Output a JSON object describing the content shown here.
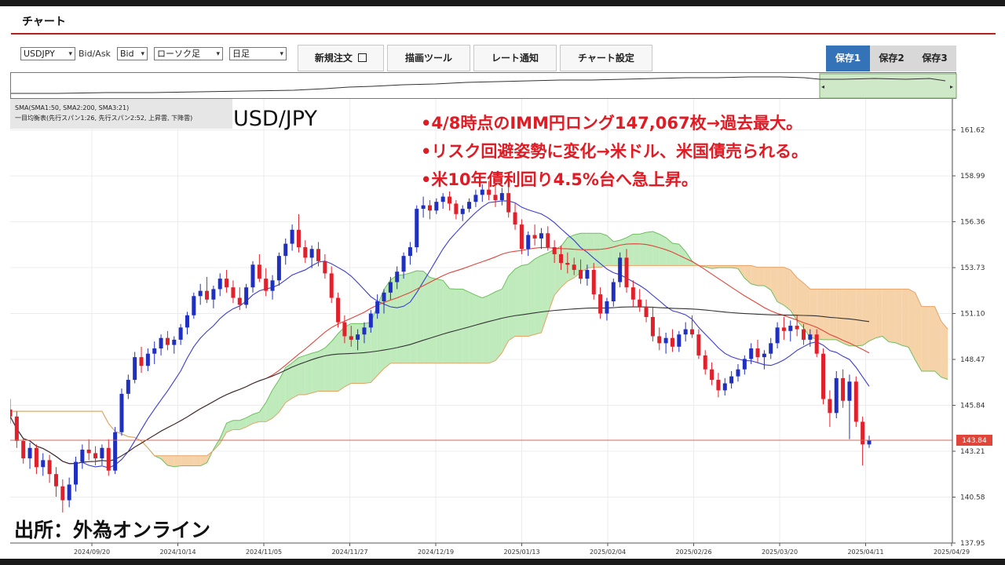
{
  "window": {
    "title": "チャート"
  },
  "toolbar": {
    "symbol": "USDJPY",
    "bidask_label": "Bid/Ask",
    "side": "Bid",
    "chart_style": "ローソク足",
    "timeframe": "日足",
    "buttons": [
      "新規注文",
      "描画ツール",
      "レート通知",
      "チャート設定"
    ],
    "save_tabs": [
      "保存1",
      "保存2",
      "保存3"
    ],
    "active_save_tab": 0
  },
  "indicator_info": {
    "sma": "SMA(SMA1:50, SMA2:200, SMA3:21)",
    "ichimoku": "一目均衡表(先行スパン1:26, 先行スパン2:52, 上昇雲, 下降雲)"
  },
  "overlay": {
    "pair": "USD/JPY",
    "notes": [
      "•4/8時点のIMM円ロング147,067枚→過去最大。",
      "•リスク回避姿勢に変化→米ドル、米国債売られる。",
      "•米10年債利回り4.5%台へ急上昇。"
    ],
    "source": "出所：外為オンライン"
  },
  "colors": {
    "up": "#1f2fbf",
    "down": "#e0202a",
    "overlay_text": "#e01b24",
    "cloud_up": "#bfeabb",
    "cloud_down": "#f6d2a8",
    "sma_short": "#3b3bd1",
    "sma_mid": "#e0453a",
    "sma_long": "#333333",
    "price_line": "#d06a5c",
    "active_tab": "#3473b8"
  },
  "chart_data": {
    "type": "candlestick",
    "title": "USD/JPY",
    "x_ticks": [
      "2024/09/20",
      "2024/10/14",
      "2024/11/05",
      "2024/11/27",
      "2024/12/19",
      "2025/01/13",
      "2025/02/04",
      "2025/02/26",
      "2025/03/20",
      "2025/04/11",
      "2025/04/29"
    ],
    "y_ticks": [
      "161.62",
      "158.99",
      "156.36",
      "153.73",
      "151.10",
      "148.47",
      "145.84",
      "143.21",
      "140.58",
      "137.95"
    ],
    "ylim": [
      137.95,
      163.4
    ],
    "current_price_label": "143.84",
    "current_price": 143.84,
    "candles": [
      [
        145.6,
        146.2,
        144.8,
        145.2
      ],
      [
        145.2,
        145.5,
        143.4,
        143.8
      ],
      [
        143.8,
        144.0,
        142.5,
        142.8
      ],
      [
        142.8,
        143.7,
        142.2,
        143.4
      ],
      [
        143.4,
        143.6,
        141.9,
        142.3
      ],
      [
        142.3,
        143.1,
        141.8,
        142.7
      ],
      [
        142.7,
        143.0,
        141.4,
        141.9
      ],
      [
        141.9,
        142.3,
        140.6,
        141.2
      ],
      [
        141.2,
        141.6,
        139.7,
        140.4
      ],
      [
        140.4,
        141.7,
        140.0,
        141.3
      ],
      [
        141.3,
        142.9,
        140.9,
        142.6
      ],
      [
        142.6,
        143.6,
        142.2,
        143.3
      ],
      [
        143.3,
        143.9,
        142.7,
        143.1
      ],
      [
        143.1,
        143.5,
        142.4,
        142.8
      ],
      [
        142.8,
        143.6,
        142.4,
        143.4
      ],
      [
        143.4,
        143.9,
        141.8,
        142.1
      ],
      [
        142.1,
        144.6,
        141.9,
        144.3
      ],
      [
        144.3,
        146.8,
        144.1,
        146.5
      ],
      [
        146.5,
        147.6,
        146.2,
        147.3
      ],
      [
        147.3,
        148.9,
        147.1,
        148.6
      ],
      [
        148.6,
        149.2,
        147.7,
        148.1
      ],
      [
        148.1,
        149.1,
        147.8,
        148.8
      ],
      [
        148.8,
        149.5,
        148.2,
        149.1
      ],
      [
        149.1,
        149.9,
        148.7,
        149.7
      ],
      [
        149.7,
        150.1,
        149.0,
        149.3
      ],
      [
        149.3,
        149.8,
        148.8,
        149.6
      ],
      [
        149.6,
        150.5,
        149.3,
        150.3
      ],
      [
        150.3,
        151.2,
        149.9,
        151.0
      ],
      [
        151.0,
        152.3,
        150.8,
        152.1
      ],
      [
        152.1,
        152.8,
        151.6,
        152.4
      ],
      [
        152.4,
        153.2,
        151.7,
        151.9
      ],
      [
        151.9,
        152.7,
        151.4,
        152.5
      ],
      [
        152.5,
        153.4,
        152.1,
        153.1
      ],
      [
        153.1,
        153.6,
        152.3,
        152.6
      ],
      [
        152.6,
        153.0,
        151.7,
        152.0
      ],
      [
        152.0,
        152.6,
        151.3,
        151.6
      ],
      [
        151.6,
        152.8,
        151.4,
        152.6
      ],
      [
        152.6,
        154.1,
        152.3,
        153.9
      ],
      [
        153.9,
        154.5,
        152.9,
        153.1
      ],
      [
        153.1,
        153.7,
        152.1,
        152.4
      ],
      [
        152.4,
        153.3,
        151.9,
        153.0
      ],
      [
        153.0,
        154.6,
        152.7,
        154.4
      ],
      [
        154.4,
        155.4,
        153.9,
        155.1
      ],
      [
        155.1,
        156.2,
        154.7,
        155.9
      ],
      [
        155.9,
        156.8,
        154.6,
        154.9
      ],
      [
        154.9,
        155.3,
        154.0,
        154.3
      ],
      [
        154.3,
        155.0,
        153.7,
        154.8
      ],
      [
        154.8,
        155.2,
        153.8,
        154.1
      ],
      [
        154.1,
        154.5,
        153.1,
        153.4
      ],
      [
        153.4,
        153.8,
        151.7,
        152.0
      ],
      [
        152.0,
        152.3,
        150.3,
        150.6
      ],
      [
        150.6,
        151.0,
        149.4,
        149.8
      ],
      [
        149.8,
        150.4,
        149.2,
        149.6
      ],
      [
        149.6,
        150.2,
        149.0,
        149.9
      ],
      [
        149.9,
        150.6,
        149.4,
        150.3
      ],
      [
        150.3,
        151.3,
        150.0,
        151.1
      ],
      [
        151.1,
        152.2,
        150.8,
        151.8
      ],
      [
        151.8,
        152.5,
        151.1,
        152.3
      ],
      [
        152.3,
        153.2,
        151.9,
        152.9
      ],
      [
        152.9,
        153.8,
        152.5,
        153.5
      ],
      [
        153.5,
        154.6,
        153.1,
        154.4
      ],
      [
        154.4,
        155.2,
        153.9,
        154.9
      ],
      [
        154.9,
        157.3,
        154.6,
        157.1
      ],
      [
        157.1,
        157.8,
        156.6,
        157.3
      ],
      [
        157.3,
        157.6,
        156.5,
        157.0
      ],
      [
        157.0,
        157.7,
        156.8,
        157.5
      ],
      [
        157.5,
        158.0,
        157.1,
        157.8
      ],
      [
        157.8,
        158.1,
        157.0,
        157.4
      ],
      [
        157.4,
        157.6,
        156.5,
        156.8
      ],
      [
        156.8,
        157.3,
        156.4,
        157.1
      ],
      [
        157.1,
        157.7,
        156.9,
        157.5
      ],
      [
        157.5,
        158.2,
        157.2,
        157.9
      ],
      [
        157.9,
        158.5,
        157.5,
        158.2
      ],
      [
        158.2,
        158.7,
        157.6,
        157.9
      ],
      [
        157.9,
        158.4,
        157.2,
        157.6
      ],
      [
        157.6,
        158.3,
        157.3,
        158.0
      ],
      [
        158.0,
        158.4,
        156.6,
        156.9
      ],
      [
        156.9,
        157.4,
        155.9,
        156.2
      ],
      [
        156.2,
        156.5,
        154.5,
        154.8
      ],
      [
        154.8,
        155.8,
        154.4,
        155.6
      ],
      [
        155.6,
        156.2,
        155.0,
        155.4
      ],
      [
        155.4,
        156.0,
        154.8,
        155.7
      ],
      [
        155.7,
        156.1,
        154.7,
        154.9
      ],
      [
        154.9,
        155.3,
        154.0,
        154.5
      ],
      [
        154.5,
        155.0,
        153.6,
        154.0
      ],
      [
        154.0,
        154.6,
        153.4,
        153.9
      ],
      [
        153.9,
        154.3,
        153.3,
        153.6
      ],
      [
        153.6,
        154.2,
        152.8,
        153.1
      ],
      [
        153.1,
        153.9,
        152.7,
        153.6
      ],
      [
        153.6,
        154.0,
        151.9,
        152.2
      ],
      [
        152.2,
        152.6,
        150.8,
        151.1
      ],
      [
        151.1,
        152.0,
        150.7,
        151.8
      ],
      [
        151.8,
        153.1,
        151.5,
        152.9
      ],
      [
        152.9,
        154.6,
        152.6,
        154.3
      ],
      [
        154.3,
        154.8,
        152.3,
        152.6
      ],
      [
        152.6,
        153.0,
        151.5,
        151.9
      ],
      [
        151.9,
        152.5,
        151.2,
        151.5
      ],
      [
        151.5,
        151.9,
        150.6,
        150.9
      ],
      [
        150.9,
        151.5,
        149.5,
        149.8
      ],
      [
        149.8,
        150.3,
        149.0,
        149.4
      ],
      [
        149.4,
        150.0,
        148.8,
        149.7
      ],
      [
        149.7,
        150.2,
        148.9,
        149.2
      ],
      [
        149.2,
        150.1,
        148.9,
        149.9
      ],
      [
        149.9,
        150.6,
        149.5,
        150.2
      ],
      [
        150.2,
        151.0,
        149.7,
        149.9
      ],
      [
        149.9,
        150.2,
        148.5,
        148.7
      ],
      [
        148.7,
        149.0,
        147.6,
        147.9
      ],
      [
        147.9,
        148.3,
        147.0,
        147.3
      ],
      [
        147.3,
        147.7,
        146.3,
        146.7
      ],
      [
        146.7,
        147.4,
        146.4,
        147.1
      ],
      [
        147.1,
        147.8,
        146.8,
        147.5
      ],
      [
        147.5,
        148.2,
        147.2,
        147.9
      ],
      [
        147.9,
        148.7,
        147.6,
        148.5
      ],
      [
        148.5,
        149.4,
        148.2,
        149.1
      ],
      [
        149.1,
        149.6,
        148.3,
        148.6
      ],
      [
        148.6,
        149.0,
        147.9,
        148.8
      ],
      [
        148.8,
        149.7,
        148.5,
        149.4
      ],
      [
        149.4,
        150.6,
        149.1,
        150.3
      ],
      [
        150.3,
        150.9,
        149.6,
        150.1
      ],
      [
        150.1,
        150.7,
        149.5,
        150.4
      ],
      [
        150.4,
        151.0,
        149.8,
        150.2
      ],
      [
        150.2,
        150.5,
        149.3,
        149.6
      ],
      [
        149.6,
        150.2,
        149.2,
        149.9
      ],
      [
        149.9,
        150.2,
        148.6,
        148.8
      ],
      [
        148.8,
        149.1,
        145.9,
        146.2
      ],
      [
        146.2,
        146.7,
        144.6,
        145.4
      ],
      [
        145.4,
        147.8,
        145.1,
        147.4
      ],
      [
        147.4,
        147.9,
        145.7,
        146.1
      ],
      [
        146.1,
        147.6,
        143.9,
        147.2
      ],
      [
        147.2,
        147.5,
        144.6,
        144.9
      ],
      [
        144.9,
        145.2,
        142.4,
        143.6
      ],
      [
        143.6,
        144.1,
        143.4,
        143.84
      ]
    ],
    "series": [
      {
        "name": "SMA3:21"
      },
      {
        "name": "SMA1:50"
      },
      {
        "name": "SMA2:200"
      },
      {
        "name": "先行スパン1"
      },
      {
        "name": "先行スパン2"
      }
    ]
  }
}
